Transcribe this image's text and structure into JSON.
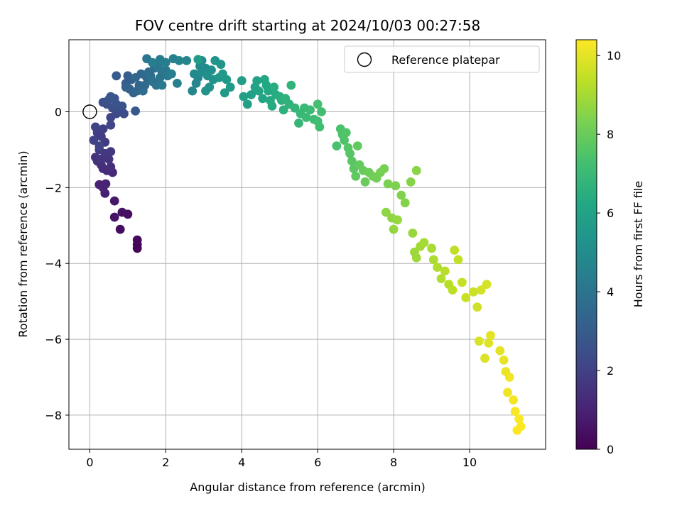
{
  "chart_data": {
    "type": "scatter",
    "title": "FOV centre drift starting at 2024/10/03 00:27:58",
    "xlabel": "Angular distance from reference (arcmin)",
    "ylabel": "Rotation from reference (arcmin)",
    "colorbar_label": "Hours from first FF file",
    "xlim": [
      -0.55,
      12.0
    ],
    "ylim": [
      -8.9,
      1.9
    ],
    "x_ticks": [
      0,
      2,
      4,
      6,
      8,
      10
    ],
    "y_ticks": [
      -8,
      -6,
      -4,
      -2,
      0
    ],
    "colorbar_range": [
      0,
      10.4
    ],
    "colorbar_ticks": [
      0,
      2,
      4,
      6,
      8,
      10
    ],
    "colormap": "viridis",
    "grid": true,
    "legend": {
      "position": "top-right",
      "entries": [
        "Reference platepar"
      ]
    },
    "reference_point": {
      "x": 0,
      "y": 0
    },
    "series": [
      {
        "name": "",
        "points": [
          [
            1.25,
            -3.6,
            0.1
          ],
          [
            1.25,
            -3.5,
            0.15
          ],
          [
            1.25,
            -3.38,
            0.2
          ],
          [
            0.8,
            -3.1,
            0.3
          ],
          [
            1.0,
            -2.7,
            0.4
          ],
          [
            0.85,
            -2.65,
            0.45
          ],
          [
            0.65,
            -2.78,
            0.55
          ],
          [
            0.65,
            -2.35,
            0.7
          ],
          [
            0.4,
            -2.15,
            0.85
          ],
          [
            0.25,
            -1.92,
            0.95
          ],
          [
            0.42,
            -1.9,
            1.0
          ],
          [
            0.35,
            -2.0,
            1.05
          ],
          [
            0.6,
            -1.6,
            1.2
          ],
          [
            0.45,
            -1.55,
            1.25
          ],
          [
            0.35,
            -1.5,
            1.3
          ],
          [
            0.3,
            -1.4,
            1.35
          ],
          [
            0.55,
            -1.45,
            1.4
          ],
          [
            0.2,
            -1.3,
            1.45
          ],
          [
            0.15,
            -1.2,
            1.5
          ],
          [
            0.3,
            -1.25,
            1.55
          ],
          [
            0.5,
            -1.25,
            1.6
          ],
          [
            0.55,
            -1.05,
            1.65
          ],
          [
            0.4,
            -1.1,
            1.7
          ],
          [
            0.25,
            -1.0,
            1.75
          ],
          [
            0.4,
            -0.8,
            1.8
          ],
          [
            0.3,
            -0.65,
            1.85
          ],
          [
            0.2,
            -0.55,
            1.9
          ],
          [
            0.35,
            -0.45,
            1.95
          ],
          [
            0.15,
            -0.4,
            2.0
          ],
          [
            0.1,
            -0.75,
            2.05
          ],
          [
            0.25,
            -0.9,
            2.1
          ],
          [
            0.55,
            -0.35,
            2.15
          ],
          [
            0.55,
            -0.15,
            2.2
          ],
          [
            0.7,
            -0.05,
            2.3
          ],
          [
            0.9,
            -0.05,
            2.35
          ],
          [
            0.8,
            0.05,
            2.4
          ],
          [
            0.6,
            0.1,
            2.45
          ],
          [
            0.45,
            0.2,
            2.5
          ],
          [
            0.35,
            0.25,
            2.55
          ],
          [
            0.5,
            0.32,
            2.6
          ],
          [
            0.7,
            0.2,
            2.65
          ],
          [
            0.85,
            0.15,
            2.7
          ],
          [
            0.65,
            0.35,
            2.75
          ],
          [
            0.55,
            0.4,
            2.8
          ],
          [
            1.2,
            0.02,
            2.9
          ],
          [
            0.7,
            0.95,
            3.0
          ],
          [
            0.95,
            0.75,
            3.05
          ],
          [
            1.0,
            0.95,
            3.1
          ],
          [
            1.1,
            0.85,
            3.15
          ],
          [
            1.05,
            0.6,
            3.2
          ],
          [
            0.95,
            0.65,
            3.25
          ],
          [
            1.15,
            0.5,
            3.3
          ],
          [
            1.25,
            0.55,
            3.35
          ],
          [
            1.3,
            0.7,
            3.4
          ],
          [
            1.2,
            0.9,
            3.45
          ],
          [
            1.35,
            1.0,
            3.5
          ],
          [
            1.5,
            0.9,
            3.55
          ],
          [
            1.45,
            0.7,
            3.6
          ],
          [
            1.4,
            0.55,
            3.65
          ],
          [
            1.55,
            1.05,
            3.7
          ],
          [
            1.7,
            1.15,
            3.75
          ],
          [
            1.6,
            0.95,
            3.8
          ],
          [
            1.65,
            0.8,
            3.85
          ],
          [
            1.75,
            0.7,
            3.9
          ],
          [
            1.85,
            0.9,
            3.95
          ],
          [
            1.9,
            1.05,
            4.0
          ],
          [
            1.5,
            1.4,
            4.05
          ],
          [
            1.8,
            1.2,
            4.1
          ],
          [
            2.0,
            1.1,
            4.15
          ],
          [
            1.9,
            0.7,
            4.2
          ],
          [
            2.05,
            0.95,
            4.25
          ],
          [
            1.85,
            1.38,
            4.3
          ],
          [
            1.65,
            1.3,
            4.35
          ],
          [
            2.15,
            1.0,
            4.4
          ],
          [
            2.0,
            1.3,
            4.45
          ],
          [
            2.2,
            1.4,
            4.5
          ],
          [
            2.3,
            0.75,
            4.55
          ],
          [
            2.35,
            1.35,
            4.6
          ],
          [
            2.55,
            1.35,
            4.65
          ],
          [
            2.7,
            0.55,
            4.7
          ],
          [
            2.8,
            0.75,
            4.75
          ],
          [
            2.85,
            0.9,
            4.8
          ],
          [
            2.75,
            1.0,
            4.85
          ],
          [
            2.9,
            1.2,
            4.9
          ],
          [
            2.95,
            1.35,
            4.95
          ],
          [
            3.05,
            1.15,
            5.0
          ],
          [
            2.95,
            1.05,
            5.05
          ],
          [
            3.1,
            0.95,
            5.1
          ],
          [
            3.2,
            1.1,
            5.15
          ],
          [
            3.25,
            0.85,
            5.2
          ],
          [
            3.15,
            0.65,
            5.25
          ],
          [
            3.05,
            0.55,
            5.3
          ],
          [
            3.3,
            1.35,
            5.35
          ],
          [
            3.45,
            1.25,
            5.4
          ],
          [
            3.4,
            0.9,
            5.45
          ],
          [
            3.5,
            1.0,
            5.5
          ],
          [
            3.6,
            0.85,
            5.55
          ],
          [
            3.55,
            0.5,
            5.6
          ],
          [
            3.7,
            0.65,
            5.65
          ],
          [
            2.85,
            1.38,
            5.7
          ],
          [
            4.0,
            0.82,
            5.75
          ],
          [
            4.05,
            0.4,
            5.8
          ],
          [
            4.15,
            0.2,
            5.85
          ],
          [
            4.25,
            0.45,
            5.9
          ],
          [
            4.35,
            0.65,
            5.95
          ],
          [
            4.4,
            0.82,
            6.0
          ],
          [
            4.45,
            0.55,
            6.05
          ],
          [
            4.55,
            0.35,
            6.1
          ],
          [
            4.6,
            0.85,
            6.15
          ],
          [
            4.65,
            0.7,
            6.2
          ],
          [
            4.7,
            0.55,
            6.25
          ],
          [
            4.75,
            0.3,
            6.3
          ],
          [
            4.8,
            0.15,
            6.35
          ],
          [
            4.9,
            0.45,
            6.4
          ],
          [
            4.85,
            0.65,
            6.45
          ],
          [
            5.0,
            0.4,
            6.5
          ],
          [
            5.05,
            0.3,
            6.55
          ],
          [
            5.1,
            0.05,
            6.6
          ],
          [
            5.15,
            0.35,
            6.65
          ],
          [
            5.25,
            0.2,
            6.7
          ],
          [
            5.3,
            0.7,
            6.75
          ],
          [
            5.4,
            0.1,
            6.8
          ],
          [
            5.5,
            -0.3,
            6.85
          ],
          [
            5.55,
            -0.05,
            6.9
          ],
          [
            5.65,
            0.1,
            6.95
          ],
          [
            5.7,
            -0.15,
            7.0
          ],
          [
            5.8,
            0.05,
            7.05
          ],
          [
            5.9,
            -0.2,
            7.1
          ],
          [
            6.0,
            -0.25,
            7.15
          ],
          [
            6.05,
            -0.4,
            7.2
          ],
          [
            6.1,
            0.0,
            7.25
          ],
          [
            6.0,
            0.2,
            7.3
          ],
          [
            6.5,
            -0.9,
            7.35
          ],
          [
            6.6,
            -0.45,
            7.4
          ],
          [
            6.65,
            -0.6,
            7.45
          ],
          [
            6.7,
            -0.75,
            7.5
          ],
          [
            6.75,
            -0.55,
            7.55
          ],
          [
            6.8,
            -0.95,
            7.6
          ],
          [
            6.85,
            -1.1,
            7.65
          ],
          [
            6.9,
            -1.3,
            7.7
          ],
          [
            6.95,
            -1.5,
            7.75
          ],
          [
            7.0,
            -1.7,
            7.8
          ],
          [
            7.05,
            -0.9,
            7.85
          ],
          [
            7.1,
            -1.4,
            7.9
          ],
          [
            7.2,
            -1.55,
            7.95
          ],
          [
            7.25,
            -1.85,
            8.0
          ],
          [
            7.35,
            -1.6,
            8.05
          ],
          [
            7.45,
            -1.7,
            8.1
          ],
          [
            7.55,
            -1.75,
            8.15
          ],
          [
            7.65,
            -1.6,
            8.2
          ],
          [
            7.75,
            -1.5,
            8.25
          ],
          [
            7.85,
            -1.9,
            8.3
          ],
          [
            8.05,
            -1.95,
            8.35
          ],
          [
            8.2,
            -2.2,
            8.4
          ],
          [
            8.3,
            -2.4,
            8.45
          ],
          [
            8.45,
            -1.85,
            8.5
          ],
          [
            8.6,
            -1.55,
            8.55
          ],
          [
            7.8,
            -2.65,
            8.6
          ],
          [
            7.95,
            -2.8,
            8.65
          ],
          [
            8.0,
            -3.1,
            8.7
          ],
          [
            8.1,
            -2.85,
            8.75
          ],
          [
            8.5,
            -3.2,
            8.8
          ],
          [
            8.55,
            -3.7,
            8.85
          ],
          [
            8.6,
            -3.85,
            8.9
          ],
          [
            8.7,
            -3.55,
            8.95
          ],
          [
            8.8,
            -3.45,
            9.0
          ],
          [
            9.0,
            -3.6,
            9.05
          ],
          [
            9.05,
            -3.9,
            9.1
          ],
          [
            9.15,
            -4.1,
            9.15
          ],
          [
            9.25,
            -4.4,
            9.2
          ],
          [
            9.35,
            -4.2,
            9.25
          ],
          [
            9.45,
            -4.55,
            9.3
          ],
          [
            9.55,
            -4.7,
            9.35
          ],
          [
            9.6,
            -3.65,
            9.4
          ],
          [
            9.7,
            -3.9,
            9.45
          ],
          [
            9.8,
            -4.5,
            9.5
          ],
          [
            9.9,
            -4.9,
            9.55
          ],
          [
            10.1,
            -4.75,
            9.6
          ],
          [
            10.2,
            -5.15,
            9.65
          ],
          [
            10.3,
            -4.7,
            9.7
          ],
          [
            10.45,
            -4.55,
            9.75
          ],
          [
            10.25,
            -6.05,
            9.8
          ],
          [
            10.4,
            -6.5,
            9.85
          ],
          [
            10.5,
            -6.1,
            9.9
          ],
          [
            10.55,
            -5.9,
            9.95
          ],
          [
            10.8,
            -6.3,
            10.0
          ],
          [
            10.9,
            -6.55,
            10.05
          ],
          [
            10.95,
            -6.85,
            10.1
          ],
          [
            11.0,
            -7.4,
            10.15
          ],
          [
            11.05,
            -7.0,
            10.2
          ],
          [
            11.15,
            -7.6,
            10.25
          ],
          [
            11.2,
            -7.9,
            10.3
          ],
          [
            11.3,
            -8.1,
            10.35
          ],
          [
            11.35,
            -8.3,
            10.4
          ],
          [
            11.25,
            -8.4,
            10.4
          ]
        ]
      }
    ]
  }
}
